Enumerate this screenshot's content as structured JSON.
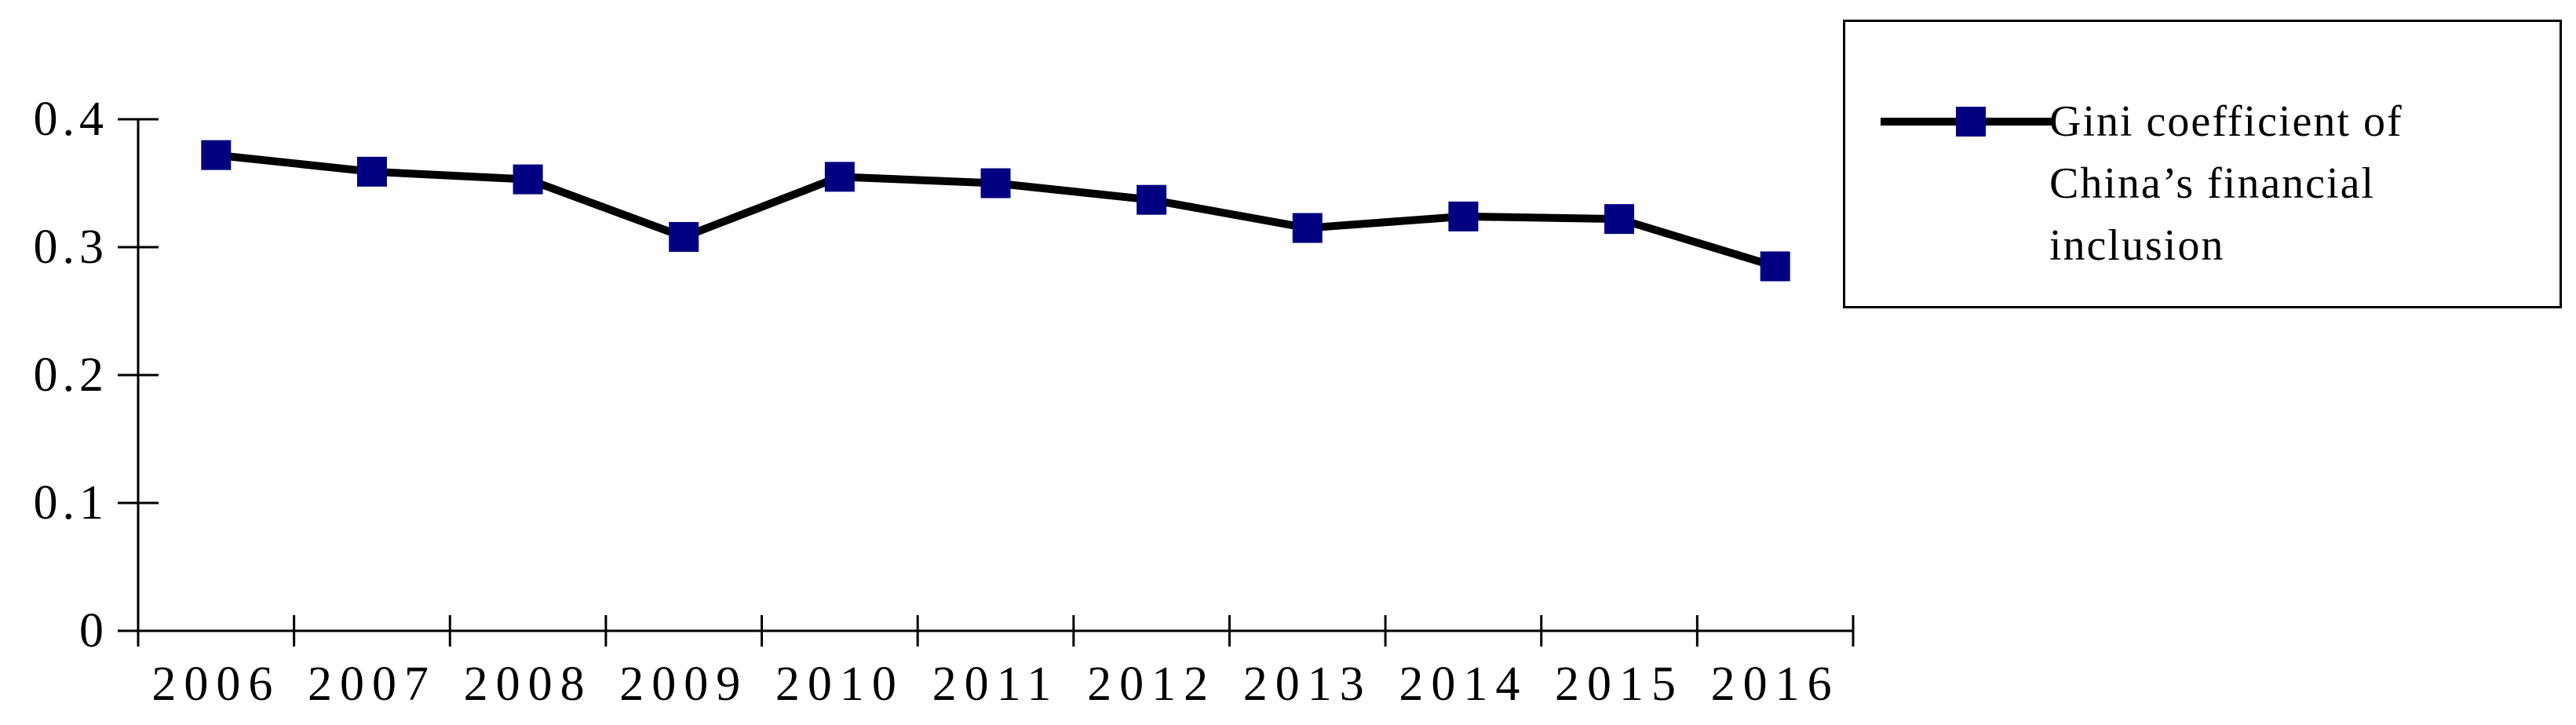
{
  "chart_data": {
    "type": "line",
    "title": "",
    "xlabel": "",
    "ylabel": "",
    "categories": [
      "2006",
      "2007",
      "2008",
      "2009",
      "2010",
      "2011",
      "2012",
      "2013",
      "2014",
      "2015",
      "2016"
    ],
    "series": [
      {
        "name": "Gini coefficient of China’s financial inclusion",
        "values": [
          0.372,
          0.359,
          0.353,
          0.308,
          0.355,
          0.35,
          0.337,
          0.315,
          0.324,
          0.322,
          0.285
        ]
      }
    ],
    "ylim": [
      0,
      0.4
    ],
    "y_ticks": [
      0,
      0.1,
      0.2,
      0.3,
      0.4
    ],
    "y_tick_labels": [
      "0",
      "0.1",
      "0.2",
      "0.3",
      "0.4"
    ],
    "grid": false,
    "legend_position": "right",
    "marker": "square"
  },
  "legend": {
    "lines": [
      "Gini coefficient of",
      "China’s financial",
      "inclusion"
    ]
  },
  "colors": {
    "line": "#000000",
    "marker": "#000080",
    "axis": "#000000",
    "background": "#ffffff",
    "legend_border": "#000000"
  }
}
